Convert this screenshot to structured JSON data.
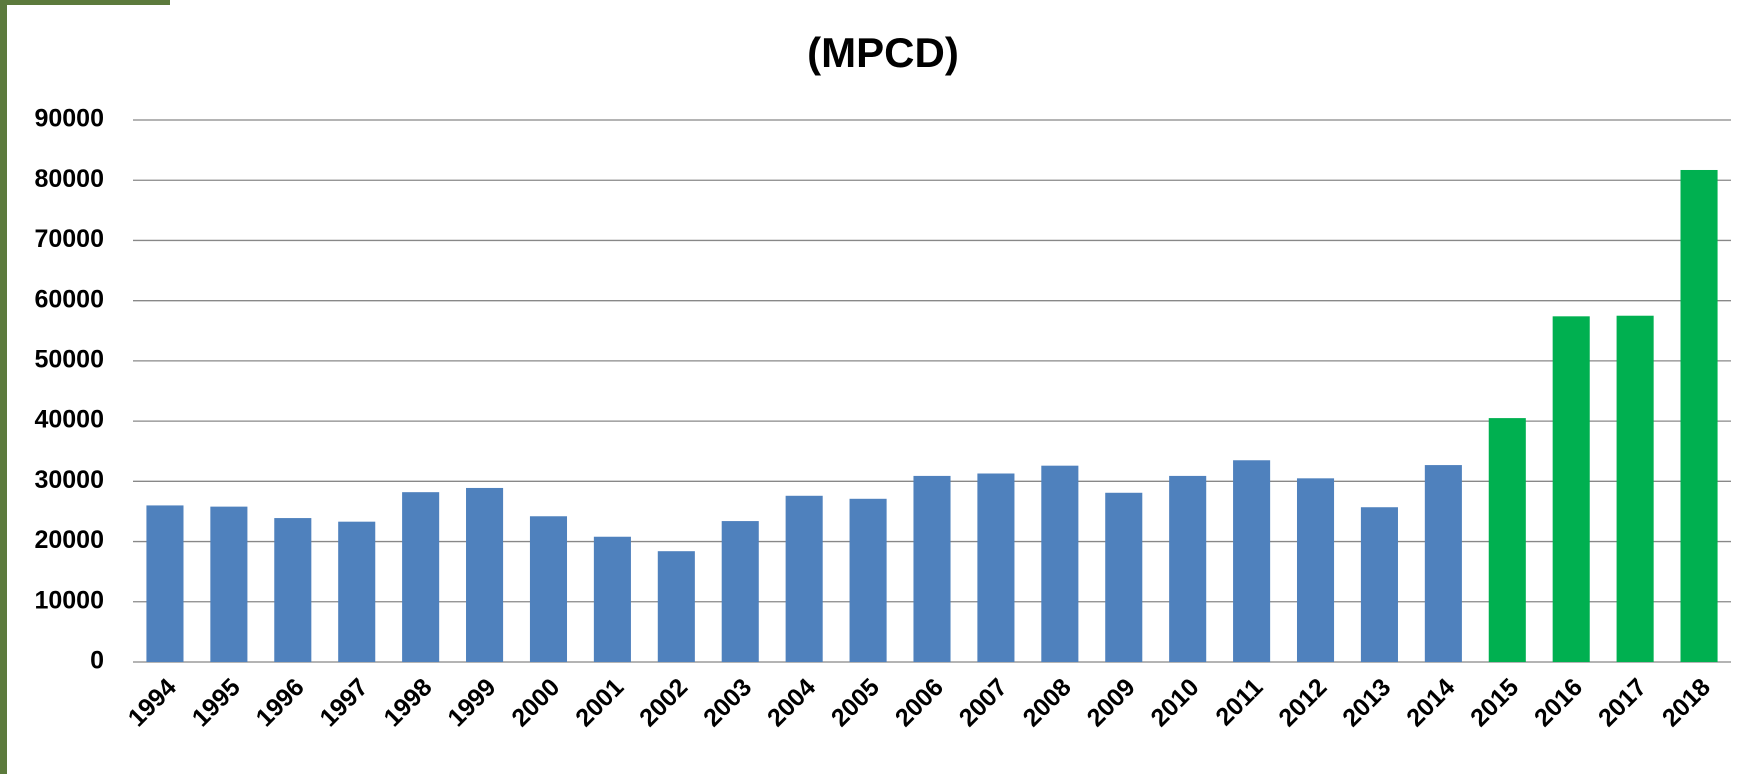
{
  "chart_data": {
    "type": "bar",
    "title": "(MPCD)",
    "categories": [
      "1994",
      "1995",
      "1996",
      "1997",
      "1998",
      "1999",
      "2000",
      "2001",
      "2002",
      "2003",
      "2004",
      "2005",
      "2006",
      "2007",
      "2008",
      "2009",
      "2010",
      "2011",
      "2012",
      "2013",
      "2014",
      "2015",
      "2016",
      "2017",
      "2018"
    ],
    "values": [
      26000,
      25800,
      23900,
      23300,
      28200,
      28900,
      24200,
      20800,
      18400,
      23400,
      27600,
      27100,
      30900,
      31300,
      32600,
      28100,
      30900,
      33500,
      30500,
      25700,
      32700,
      40500,
      57400,
      57500,
      81700
    ],
    "colors": [
      "#4f81bd",
      "#4f81bd",
      "#4f81bd",
      "#4f81bd",
      "#4f81bd",
      "#4f81bd",
      "#4f81bd",
      "#4f81bd",
      "#4f81bd",
      "#4f81bd",
      "#4f81bd",
      "#4f81bd",
      "#4f81bd",
      "#4f81bd",
      "#4f81bd",
      "#4f81bd",
      "#4f81bd",
      "#4f81bd",
      "#4f81bd",
      "#4f81bd",
      "#4f81bd",
      "#00b050",
      "#00b050",
      "#00b050",
      "#00b050"
    ],
    "ylim": [
      0,
      90000
    ],
    "yticks": [
      0,
      10000,
      20000,
      30000,
      40000,
      50000,
      60000,
      70000,
      80000,
      90000
    ],
    "grid": true
  }
}
